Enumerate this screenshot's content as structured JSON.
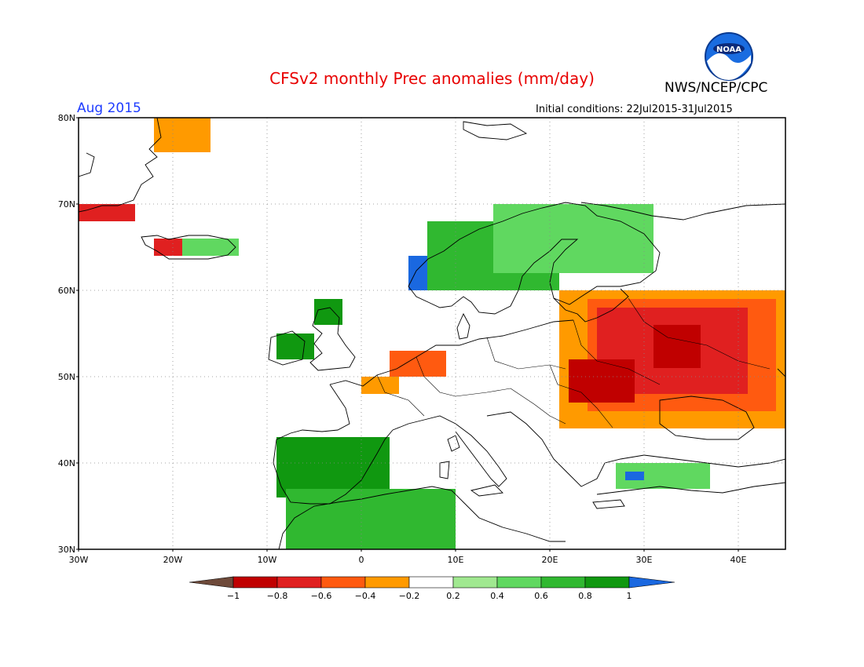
{
  "header": {
    "title": "CFSv2 monthly Prec anomalies (mm/day)",
    "agency": "NWS/NCEP/CPC",
    "logo_text": "NOAA",
    "month": "Aug 2015",
    "initial_conditions": "Initial conditions: 22Jul2015-31Jul2015"
  },
  "map": {
    "lon_range": [
      -30,
      45
    ],
    "lat_range": [
      30,
      80
    ],
    "lat_labels": [
      "80N",
      "70N",
      "60N",
      "50N",
      "40N",
      "30N"
    ],
    "lon_labels": [
      "30W",
      "20W",
      "10W",
      "0",
      "10E",
      "20E",
      "30E",
      "40E"
    ],
    "grid": "dotted"
  },
  "legend": {
    "colors": [
      "#6e4a3a",
      "#c00000",
      "#e02020",
      "#ff5a10",
      "#ff9a00",
      "#ffffff",
      "#a0e890",
      "#60d860",
      "#30b830",
      "#109810",
      "#1a68e0"
    ],
    "labels": [
      "-1",
      "-0.8",
      "-0.6",
      "-0.4",
      "-0.2",
      "0.2",
      "0.4",
      "0.6",
      "0.8",
      "1"
    ]
  },
  "chart_data": {
    "type": "heatmap",
    "title": "CFSv2 monthly Prec anomalies (mm/day)",
    "units": "mm/day",
    "period": "Aug 2015",
    "initial_conditions": "22Jul2015-31Jul2015",
    "x_range": [
      -30,
      45
    ],
    "y_range": [
      30,
      80
    ],
    "contour_levels": [
      -1,
      -0.8,
      -0.6,
      -0.4,
      -0.2,
      0.2,
      0.4,
      0.6,
      0.8,
      1
    ],
    "regions": [
      {
        "lon": [
          -22,
          -16
        ],
        "lat": [
          76,
          80
        ],
        "anomaly": -0.4
      },
      {
        "lon": [
          -30,
          -24
        ],
        "lat": [
          68,
          70
        ],
        "anomaly": -0.8
      },
      {
        "lon": [
          -22,
          -19
        ],
        "lat": [
          64,
          66
        ],
        "anomaly": -0.8
      },
      {
        "lon": [
          -19,
          -13
        ],
        "lat": [
          64,
          66
        ],
        "anomaly": 0.4
      },
      {
        "lon": [
          5,
          10
        ],
        "lat": [
          60,
          64
        ],
        "anomaly": 1.0
      },
      {
        "lon": [
          7,
          21
        ],
        "lat": [
          60,
          68
        ],
        "anomaly": 0.6
      },
      {
        "lon": [
          14,
          31
        ],
        "lat": [
          62,
          70
        ],
        "anomaly": 0.4
      },
      {
        "lon": [
          -9,
          -5
        ],
        "lat": [
          52,
          55
        ],
        "anomaly": 0.8
      },
      {
        "lon": [
          -5,
          -2
        ],
        "lat": [
          56,
          59
        ],
        "anomaly": 0.8
      },
      {
        "lon": [
          0,
          4
        ],
        "lat": [
          48,
          50
        ],
        "anomaly": -0.4
      },
      {
        "lon": [
          3,
          9
        ],
        "lat": [
          50,
          53
        ],
        "anomaly": -0.6
      },
      {
        "lon": [
          21,
          45
        ],
        "lat": [
          44,
          60
        ],
        "anomaly": -0.4
      },
      {
        "lon": [
          24,
          44
        ],
        "lat": [
          46,
          59
        ],
        "anomaly": -0.6
      },
      {
        "lon": [
          25,
          41
        ],
        "lat": [
          48,
          58
        ],
        "anomaly": -0.8
      },
      {
        "lon": [
          22,
          29
        ],
        "lat": [
          47,
          52
        ],
        "anomaly": -1.0
      },
      {
        "lon": [
          31,
          36
        ],
        "lat": [
          51,
          56
        ],
        "anomaly": -1.0
      },
      {
        "lon": [
          -7,
          2
        ],
        "lat": [
          38,
          42
        ],
        "anomaly": 1.0
      },
      {
        "lon": [
          -9,
          3
        ],
        "lat": [
          36,
          43
        ],
        "anomaly": 0.8
      },
      {
        "lon": [
          -3,
          9
        ],
        "lat": [
          32,
          37
        ],
        "anomaly": 1.0
      },
      {
        "lon": [
          -8,
          10
        ],
        "lat": [
          30,
          37
        ],
        "anomaly": 0.6
      },
      {
        "lon": [
          27,
          37
        ],
        "lat": [
          37,
          40
        ],
        "anomaly": 0.4
      },
      {
        "lon": [
          28,
          30
        ],
        "lat": [
          38,
          39
        ],
        "anomaly": 1.0
      }
    ]
  }
}
